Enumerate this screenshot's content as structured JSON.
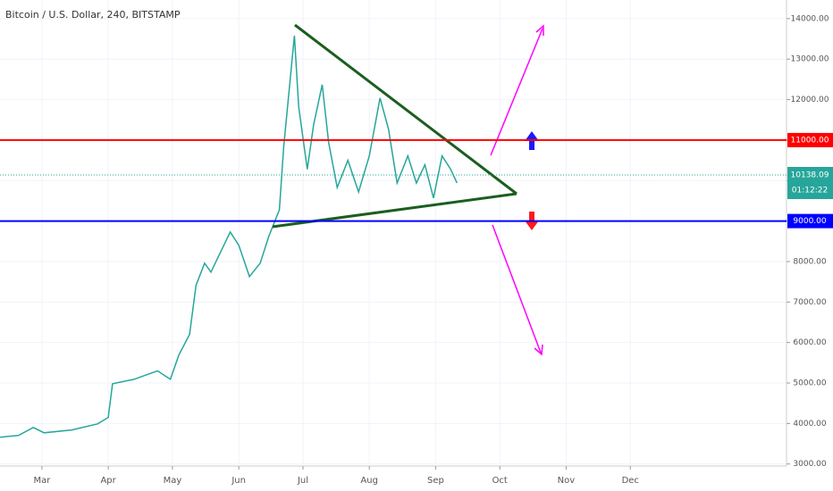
{
  "chart_data": {
    "type": "line",
    "title": "Bitcoin / U.S. Dollar, 240, BITSTAMP",
    "x": [
      8,
      17,
      24,
      29,
      42,
      54,
      59,
      61,
      71,
      82,
      88,
      92,
      97,
      100,
      104,
      107,
      111,
      116,
      120,
      125,
      130,
      134,
      139,
      141,
      144,
      146,
      148,
      152,
      155,
      159,
      162,
      166,
      171,
      176,
      181,
      186,
      190,
      194,
      199,
      203,
      207,
      211,
      215,
      219,
      222
    ],
    "series": [
      {
        "name": "BTCUSD",
        "color": "#26a69a",
        "values": [
          3660,
          3705,
          3900,
          3770,
          3840,
          3990,
          4150,
          4980,
          5090,
          5300,
          5090,
          5690,
          6200,
          7410,
          7960,
          7740,
          8180,
          8730,
          8400,
          7630,
          7960,
          8620,
          9280,
          10830,
          12480,
          13580,
          11820,
          10280,
          11380,
          12370,
          10940,
          9830,
          10500,
          9720,
          10610,
          12040,
          11270,
          9940,
          10610,
          9940,
          10390,
          9570,
          10610,
          10280,
          9940
        ]
      }
    ],
    "xlim": [
      8.4,
      376
    ],
    "xticks": [
      {
        "value": 28,
        "label": "Mar"
      },
      {
        "value": 59,
        "label": "Apr"
      },
      {
        "value": 89,
        "label": "May"
      },
      {
        "value": 120,
        "label": "Jun"
      },
      {
        "value": 150,
        "label": "Jul"
      },
      {
        "value": 181,
        "label": "Aug"
      },
      {
        "value": 212,
        "label": "Sep"
      },
      {
        "value": 242,
        "label": "Oct"
      },
      {
        "value": 273,
        "label": "Nov"
      },
      {
        "value": 303,
        "label": "Dec"
      }
    ],
    "ylim": [
      2950,
      14460
    ],
    "yticks": [
      {
        "value": 3000,
        "label": "3000.00"
      },
      {
        "value": 4000,
        "label": "4000.00"
      },
      {
        "value": 5000,
        "label": "5000.00"
      },
      {
        "value": 6000,
        "label": "6000.00"
      },
      {
        "value": 7000,
        "label": "7000.00"
      },
      {
        "value": 8000,
        "label": "8000.00"
      },
      {
        "value": 9000,
        "label": "9000.00"
      },
      {
        "value": 10000,
        "label": "10000.00"
      },
      {
        "value": 11000,
        "label": "11000.00"
      },
      {
        "value": 12000,
        "label": "12000.00"
      },
      {
        "value": 13000,
        "label": "13000.00"
      },
      {
        "value": 14000,
        "label": "14000.00"
      }
    ],
    "grid": true,
    "levels": [
      {
        "value": 11000,
        "label": "11000.00",
        "color": "#ff0000"
      },
      {
        "value": 9000,
        "label": "9000.00",
        "color": "#0000ff"
      }
    ],
    "last_price": 10138.09,
    "countdown": "01:12:22"
  }
}
